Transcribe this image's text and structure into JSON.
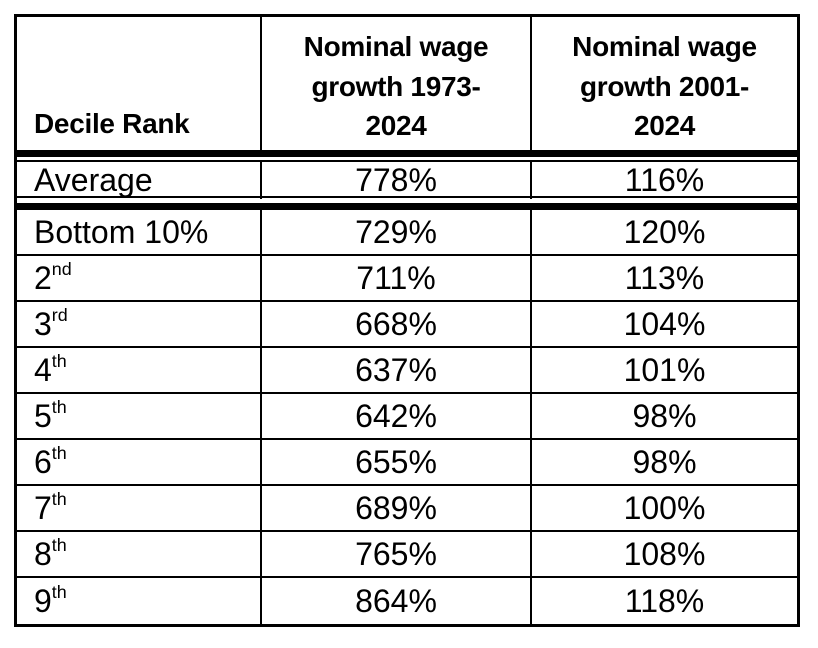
{
  "table": {
    "columns": [
      {
        "label": "Decile Rank"
      },
      {
        "label": "Nominal wage\ngrowth 1973-\n2024"
      },
      {
        "label": "Nominal wage\ngrowth 2001-\n2024"
      }
    ],
    "average_row": {
      "rank": "Average",
      "sup": "",
      "growth_1973_2024": "778%",
      "growth_2001_2024": "116%"
    },
    "rows": [
      {
        "rank": "Bottom 10%",
        "sup": "",
        "v1973": "729%",
        "v2001": "120%"
      },
      {
        "rank": "2",
        "sup": "nd",
        "v1973": "711%",
        "v2001": "113%"
      },
      {
        "rank": "3",
        "sup": "rd",
        "v1973": "668%",
        "v2001": "104%"
      },
      {
        "rank": "4",
        "sup": "th",
        "v1973": "637%",
        "v2001": "101%"
      },
      {
        "rank": "5",
        "sup": "th",
        "v1973": "642%",
        "v2001": "98%"
      },
      {
        "rank": "6",
        "sup": "th",
        "v1973": "655%",
        "v2001": "98%"
      },
      {
        "rank": "7",
        "sup": "th",
        "v1973": "689%",
        "v2001": "100%"
      },
      {
        "rank": "8",
        "sup": "th",
        "v1973": "765%",
        "v2001": "108%"
      },
      {
        "rank": "9",
        "sup": "th",
        "v1973": "864%",
        "v2001": "118%"
      }
    ],
    "colors": {
      "border": "#000000",
      "text": "#000000",
      "background": "#ffffff"
    }
  },
  "chart_data": {
    "type": "table",
    "columns": [
      "Decile Rank",
      "Nominal wage growth 1973-2024",
      "Nominal wage growth 2001-2024"
    ],
    "rows": [
      [
        "Average",
        "778%",
        "116%"
      ],
      [
        "Bottom 10%",
        "729%",
        "120%"
      ],
      [
        "2nd",
        "711%",
        "113%"
      ],
      [
        "3rd",
        "668%",
        "104%"
      ],
      [
        "4th",
        "637%",
        "101%"
      ],
      [
        "5th",
        "642%",
        "98%"
      ],
      [
        "6th",
        "655%",
        "98%"
      ],
      [
        "7th",
        "689%",
        "100%"
      ],
      [
        "8th",
        "765%",
        "108%"
      ],
      [
        "9th",
        "864%",
        "118%"
      ]
    ],
    "notes": "Average row separated from header and decile rows by thick-thin double rules"
  }
}
